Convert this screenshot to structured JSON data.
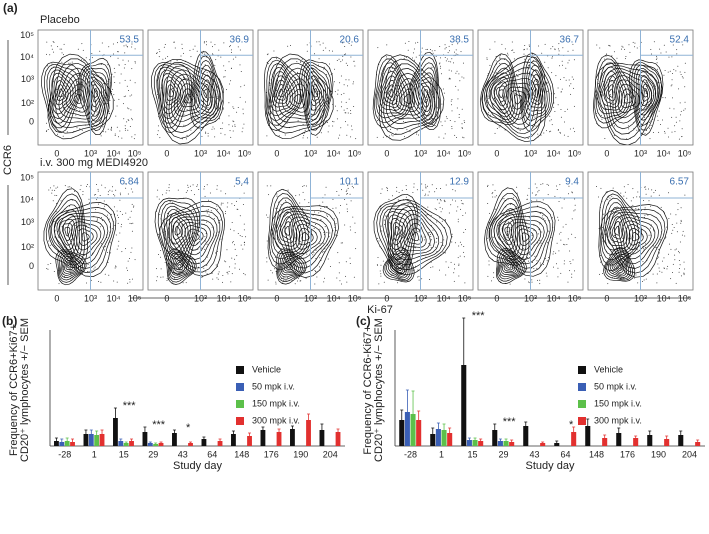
{
  "panel_a": {
    "label": "(a)",
    "y_axis_label": "CCR6",
    "x_axis_label": "Ki-67",
    "y_ticks": [
      "10⁵",
      "10⁴",
      "10³",
      "10²",
      "0"
    ],
    "x_ticks": [
      "0",
      "10³",
      "10⁴",
      "10⁵"
    ],
    "rows": [
      {
        "label": "Placebo",
        "gates": [
          53.5,
          36.9,
          20.6,
          38.5,
          36.7,
          52.4
        ]
      },
      {
        "label": "i.v. 300 mg MEDI4920",
        "gates": [
          6.84,
          5.4,
          10.1,
          12.9,
          9.4,
          6.57
        ]
      }
    ]
  },
  "chart_data": [
    {
      "type": "bar",
      "label": "(b)",
      "ylabel": [
        "Frequency of CCR6+Ki67+",
        "CD20⁺ lymphocytes +/− SEM"
      ],
      "xlabel": "Study day",
      "categories": [
        "-28",
        "1",
        "15",
        "29",
        "43",
        "64",
        "148",
        "176",
        "190",
        "204"
      ],
      "ylim": [
        0,
        11.6
      ],
      "series": [
        {
          "name": "Vehicle",
          "color": "#111111",
          "values": [
            0.5,
            1.2,
            2.8,
            1.4,
            1.3,
            0.7,
            1.2,
            1.6,
            1.7,
            1.6
          ],
          "errors": [
            0.3,
            0.4,
            1.0,
            0.5,
            0.3,
            0.2,
            0.3,
            0.3,
            0.3,
            0.6
          ]
        },
        {
          "name": "50 mpk i.v.",
          "color": "#3a5fb5",
          "values": [
            0.4,
            1.2,
            0.5,
            0.3,
            null,
            null,
            null,
            null,
            null,
            null
          ],
          "errors": [
            0.3,
            0.4,
            0.2,
            0.1,
            null,
            null,
            null,
            null,
            null,
            null
          ]
        },
        {
          "name": "150 mpk i.v.",
          "color": "#5cc04a",
          "values": [
            0.5,
            1.1,
            0.3,
            0.2,
            null,
            null,
            null,
            null,
            null,
            null
          ],
          "errors": [
            0.3,
            0.4,
            0.1,
            0.1,
            null,
            null,
            null,
            null,
            null,
            null
          ]
        },
        {
          "name": "300 mpk i.v.",
          "color": "#e2302f",
          "values": [
            0.4,
            1.2,
            0.5,
            0.3,
            0.3,
            0.5,
            1.0,
            1.4,
            2.6,
            1.4
          ],
          "errors": [
            0.3,
            0.4,
            0.2,
            0.1,
            0.1,
            0.2,
            0.3,
            0.3,
            0.6,
            0.3
          ]
        }
      ],
      "annotations": [
        {
          "text": "***",
          "category": "15"
        },
        {
          "text": "***",
          "category": "29"
        },
        {
          "text": "*",
          "category": "43"
        }
      ]
    },
    {
      "type": "bar",
      "label": "(c)",
      "ylabel": [
        "Frequency of CCR6-Ki67+",
        "CD20⁺ lymphocytes +/− SEM"
      ],
      "xlabel": "Study day",
      "categories": [
        "-28",
        "1",
        "15",
        "29",
        "43",
        "64",
        "148",
        "176",
        "190",
        "204"
      ],
      "ylim": [
        0,
        11.6
      ],
      "series": [
        {
          "name": "Vehicle",
          "color": "#111111",
          "values": [
            2.6,
            1.2,
            8.1,
            1.6,
            2.0,
            0.3,
            2.0,
            1.3,
            1.1,
            1.1
          ],
          "errors": [
            1.0,
            0.6,
            4.7,
            0.6,
            0.4,
            0.2,
            0.7,
            0.5,
            0.4,
            0.4
          ]
        },
        {
          "name": "50 mpk i.v.",
          "color": "#3a5fb5",
          "values": [
            3.4,
            1.7,
            0.6,
            0.5,
            null,
            null,
            null,
            null,
            null,
            null
          ],
          "errors": [
            2.2,
            0.6,
            0.2,
            0.2,
            null,
            null,
            null,
            null,
            null,
            null
          ]
        },
        {
          "name": "150 mpk i.v.",
          "color": "#5cc04a",
          "values": [
            3.2,
            1.6,
            0.6,
            0.5,
            null,
            null,
            null,
            null,
            null,
            null
          ],
          "errors": [
            2.3,
            0.6,
            0.2,
            0.2,
            null,
            null,
            null,
            null,
            null,
            null
          ]
        },
        {
          "name": "300 mpk i.v.",
          "color": "#e2302f",
          "values": [
            2.6,
            1.3,
            0.5,
            0.4,
            0.3,
            1.4,
            0.8,
            0.8,
            0.7,
            0.4
          ],
          "errors": [
            0.9,
            0.5,
            0.2,
            0.2,
            0.1,
            0.5,
            0.3,
            0.2,
            0.3,
            0.2
          ]
        }
      ],
      "annotations": [
        {
          "text": "***",
          "category": "15"
        },
        {
          "text": "***",
          "category": "29"
        },
        {
          "text": "*",
          "category": "64"
        }
      ]
    }
  ]
}
